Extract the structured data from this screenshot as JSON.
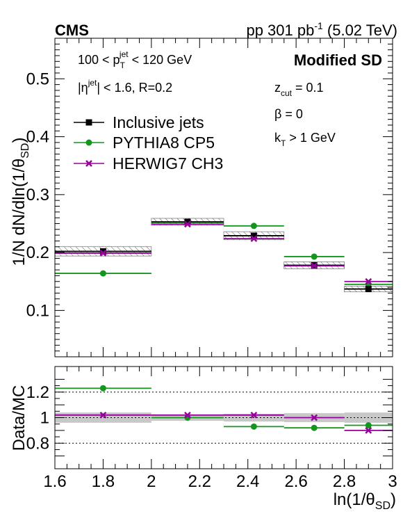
{
  "header": {
    "experiment": "CMS",
    "lumi_prefix": "pp 301 pb",
    "lumi_sup": "-1",
    "lumi_suffix": " (5.02 TeV)"
  },
  "annotations": {
    "pt_left": "100 < p",
    "pt_sup": "jet",
    "pt_sub": "T",
    "pt_right": " < 120 GeV",
    "eta_left": "|η",
    "eta_sup": "jet",
    "eta_right": "| < 1.6, R=0.2",
    "method": "Modified SD",
    "zcut_main": "z",
    "zcut_sub": "cut",
    "zcut_value": " = 0.1",
    "beta": "β = 0",
    "kt_main": "k",
    "kt_sub": "T",
    "kt_value": " > 1 GeV"
  },
  "legend": {
    "inclusive": "Inclusive jets",
    "pythia": "PYTHIA8 CP5",
    "herwig": "HERWIG7 CH3"
  },
  "axes": {
    "ylabel_top": "1/N dN/dln(1/θ",
    "ylabel_top_sub": "SD",
    "ylabel_top_close": ")",
    "ylabel_bottom": "Data/MC",
    "xlabel": "ln(1/θ",
    "xlabel_sub": "SD",
    "xlabel_close": ")"
  },
  "colors": {
    "data": "#000000",
    "pythia": "#14961e",
    "herwig": "#96009b",
    "band": "#c8c8c8"
  },
  "chart_data": [
    {
      "type": "scatter",
      "name": "top",
      "xlim": [
        1.6,
        3.0
      ],
      "ylim": [
        0.02,
        0.57
      ],
      "yticks": [
        0.1,
        0.2,
        0.3,
        0.4,
        0.5
      ],
      "ytick_labels": [
        "0.1",
        "0.2",
        "0.3",
        "0.4",
        "0.5"
      ],
      "bins": [
        [
          1.6,
          2.0
        ],
        [
          2.0,
          2.3
        ],
        [
          2.3,
          2.55
        ],
        [
          2.55,
          2.8
        ],
        [
          2.8,
          3.0
        ]
      ],
      "centers": [
        1.8,
        2.15,
        2.425,
        2.675,
        2.9
      ],
      "data": [
        0.202,
        0.253,
        0.229,
        0.178,
        0.137
      ],
      "data_unc": [
        0.008,
        0.006,
        0.007,
        0.006,
        0.005
      ],
      "pythia": [
        0.164,
        0.252,
        0.246,
        0.193,
        0.145
      ],
      "herwig": [
        0.199,
        0.249,
        0.224,
        0.177,
        0.15
      ]
    },
    {
      "type": "scatter",
      "name": "ratio",
      "xlim": [
        1.6,
        3.0
      ],
      "ylim": [
        0.6,
        1.4
      ],
      "yticks": [
        0.8,
        1.0,
        1.2
      ],
      "ytick_labels": [
        "0.8",
        "1",
        "1.2"
      ],
      "xticks": [
        1.6,
        1.8,
        2.0,
        2.2,
        2.4,
        2.6,
        2.8,
        3.0
      ],
      "xtick_labels": [
        "1.6",
        "1.8",
        "2",
        "2.2",
        "2.4",
        "2.6",
        "2.8",
        "3"
      ],
      "reference_lines": [
        0.8,
        1.0,
        1.2
      ],
      "bins": [
        [
          1.6,
          2.0
        ],
        [
          2.0,
          2.3
        ],
        [
          2.3,
          2.55
        ],
        [
          2.55,
          2.8
        ],
        [
          2.8,
          3.0
        ]
      ],
      "centers": [
        1.8,
        2.15,
        2.425,
        2.675,
        2.9
      ],
      "band_half_width": [
        0.04,
        0.025,
        0.03,
        0.035,
        0.04
      ],
      "pythia": [
        1.23,
        1.0,
        0.93,
        0.92,
        0.94
      ],
      "herwig": [
        1.02,
        1.02,
        1.02,
        1.0,
        0.9
      ]
    }
  ]
}
